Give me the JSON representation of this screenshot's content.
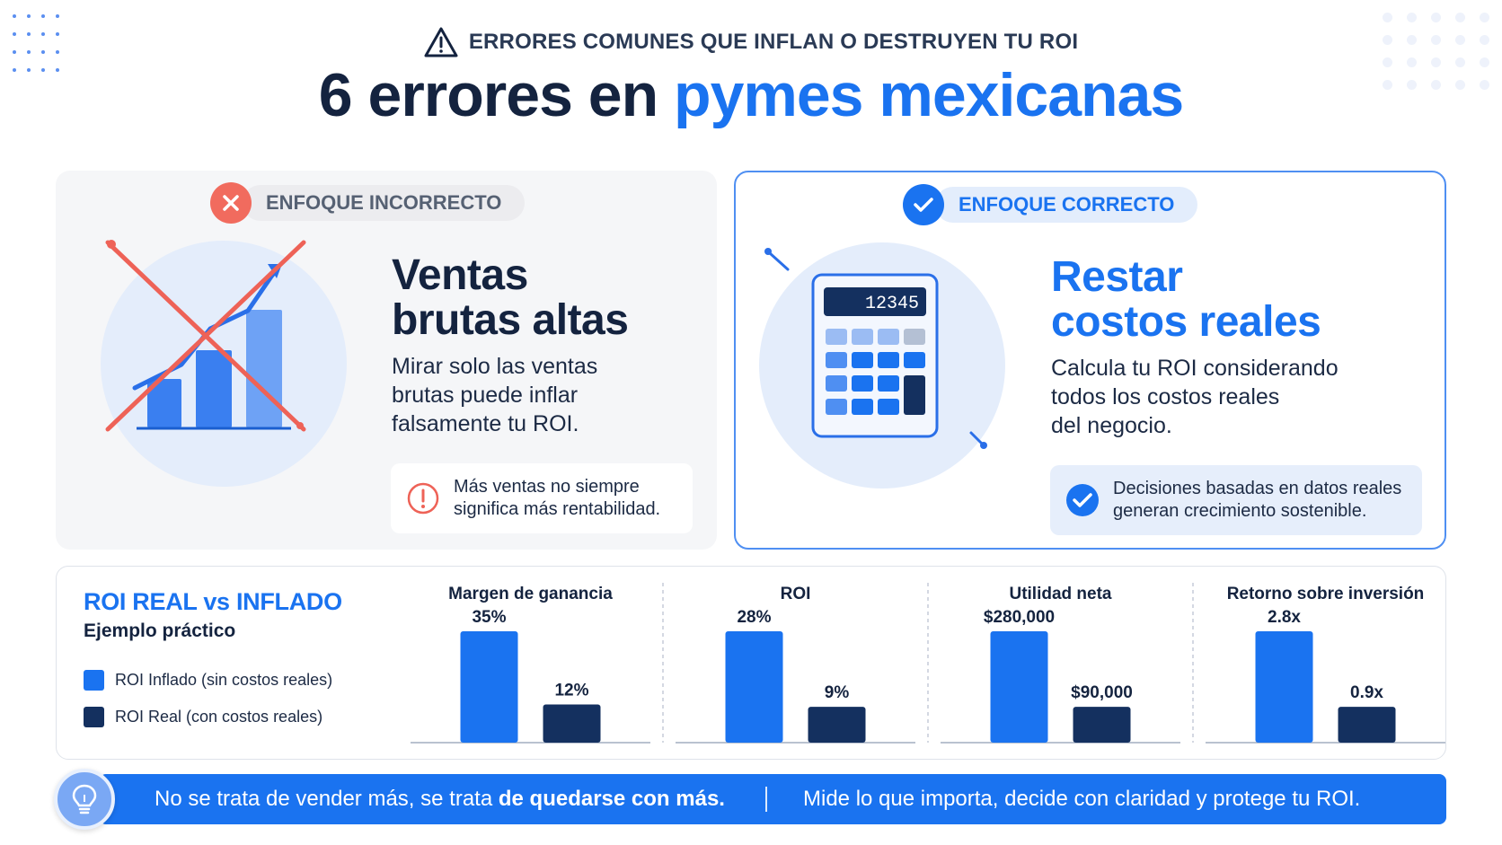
{
  "header": {
    "kicker": "ERRORES COMUNES QUE INFLAN O DESTRUYEN TU ROI",
    "title_plain": "6 errores en",
    "title_accent": "pymes mexicanas"
  },
  "incorrect": {
    "badge_label": "ENFOQUE INCORRECTO",
    "title_lines": [
      "Ventas",
      "brutas altas"
    ],
    "body_lines": [
      "Mirar solo las ventas",
      "brutas puede inflar",
      "falsamente tu ROI."
    ],
    "note_lines": [
      "Más ventas no siempre",
      "significa más rentabilidad."
    ]
  },
  "correct": {
    "badge_label": "ENFOQUE CORRECTO",
    "calculator_display": "12345",
    "title_lines": [
      "Restar",
      "costos reales"
    ],
    "body_lines": [
      "Calcula tu ROI considerando",
      "todos los costos reales",
      "del negocio."
    ],
    "note_lines": [
      "Decisiones basadas en datos reales",
      "generan crecimiento sostenible."
    ]
  },
  "comparison": {
    "title": "ROI REAL vs INFLADO",
    "subtitle": "Ejemplo práctico"
  },
  "colors": {
    "inflated": "#1a73f0",
    "real": "#14305f"
  },
  "chart_data": {
    "type": "bar",
    "legend": [
      "ROI Inflado (sin costos reales)",
      "ROI Real (con costos reales)"
    ],
    "groups": [
      {
        "label": "Margen de ganancia",
        "values": [
          35,
          12
        ],
        "value_labels": [
          "35%",
          "12%"
        ]
      },
      {
        "label": "ROI",
        "values": [
          28,
          9
        ],
        "value_labels": [
          "28%",
          "9%"
        ]
      },
      {
        "label": "Utilidad neta",
        "values": [
          280000,
          90000
        ],
        "value_labels": [
          "$280,000",
          "$90,000"
        ]
      },
      {
        "label": "Retorno sobre inversión",
        "values": [
          2.8,
          0.9
        ],
        "value_labels": [
          "2.8x",
          "0.9x"
        ]
      }
    ]
  },
  "banner": {
    "left_normal": "No se trata de vender más, se trata",
    "left_bold": "de quedarse con más.",
    "right": "Mide lo que importa, decide con claridad y protege tu ROI."
  }
}
